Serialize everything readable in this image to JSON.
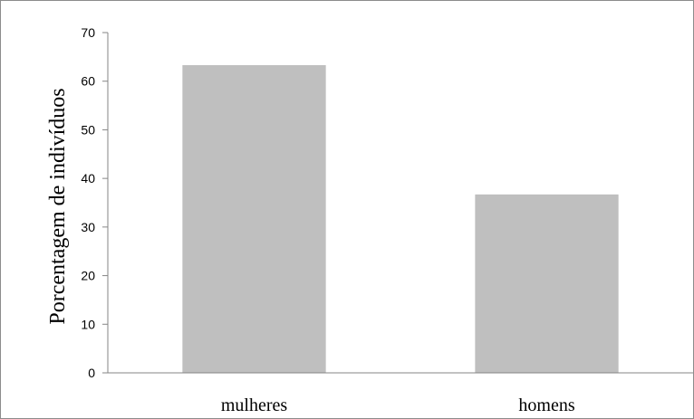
{
  "chart_data": {
    "type": "bar",
    "categories": [
      "mulheres",
      "homens"
    ],
    "values": [
      63.3,
      36.7
    ],
    "title": "",
    "xlabel": "",
    "ylabel": "Porcentagem de indivíduos",
    "ylim": [
      0,
      70
    ],
    "yticks": [
      0,
      10,
      20,
      30,
      40,
      50,
      60,
      70
    ],
    "grid": false,
    "legend": "none",
    "bar_color": "#bfbfbf",
    "axis_color": "#868686"
  }
}
